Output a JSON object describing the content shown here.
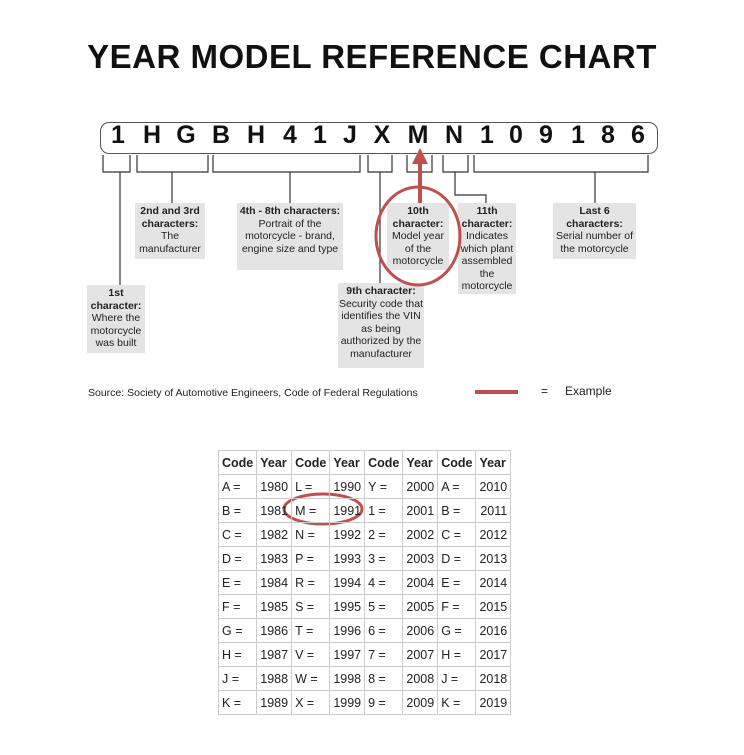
{
  "title": "YEAR MODEL REFERENCE CHART",
  "vin": [
    "1",
    "H",
    "G",
    "B",
    "H",
    "4",
    "1",
    "J",
    "X",
    "M",
    "N",
    "1",
    "0",
    "9",
    "1",
    "8",
    "6"
  ],
  "labels": {
    "first": {
      "head": "1st character:",
      "text": "Where the motorcycle was built"
    },
    "second_third": {
      "head": "2nd and 3rd characters:",
      "text": "The manufacturer"
    },
    "fourth_eighth": {
      "head": "4th - 8th characters:",
      "text": "Portrait of the motorcycle - brand, engine size and type"
    },
    "ninth": {
      "head": "9th character:",
      "text": "Security code that identifies the VIN as being authorized by the manufacturer"
    },
    "tenth": {
      "head": "10th character:",
      "text": "Model year of the motorcycle"
    },
    "eleventh": {
      "head": "11th character:",
      "text": "Indicates which plant assembled the motorcycle"
    },
    "last6": {
      "head": "Last 6 characters:",
      "text": "Serial number of the motorcycle"
    }
  },
  "source": "Source:  Society of Automotive Engineers, Code of Federal Regulations",
  "legend": {
    "equals": "=",
    "label": "Example",
    "color": "#c0504d"
  },
  "table": {
    "headers": [
      "Code",
      "Year",
      "Code",
      "Year",
      "Code",
      "Year",
      "Code",
      "Year"
    ],
    "rows": [
      [
        "A =",
        "1980",
        "L =",
        "1990",
        "Y =",
        "2000",
        "A =",
        "2010"
      ],
      [
        "B =",
        "1981",
        "M =",
        "1991",
        "1 =",
        "2001",
        "B =",
        "2011"
      ],
      [
        "C =",
        "1982",
        "N =",
        "1992",
        "2 =",
        "2002",
        "C =",
        "2012"
      ],
      [
        "D =",
        "1983",
        "P =",
        "1993",
        "3 =",
        "2003",
        "D =",
        "2013"
      ],
      [
        "E =",
        "1984",
        "R =",
        "1994",
        "4 =",
        "2004",
        "E =",
        "2014"
      ],
      [
        "F =",
        "1985",
        "S =",
        "1995",
        "5 =",
        "2005",
        "F =",
        "2015"
      ],
      [
        "G =",
        "1986",
        "T =",
        "1996",
        "6 =",
        "2006",
        "G =",
        "2016"
      ],
      [
        "H =",
        "1987",
        "V =",
        "1997",
        "7 =",
        "2007",
        "H =",
        "2017"
      ],
      [
        "J =",
        "1988",
        "W =",
        "1998",
        "8 =",
        "2008",
        "J =",
        "2018"
      ],
      [
        "K =",
        "1989",
        "X =",
        "1999",
        "9 =",
        "2009",
        "K =",
        "2019"
      ]
    ]
  }
}
